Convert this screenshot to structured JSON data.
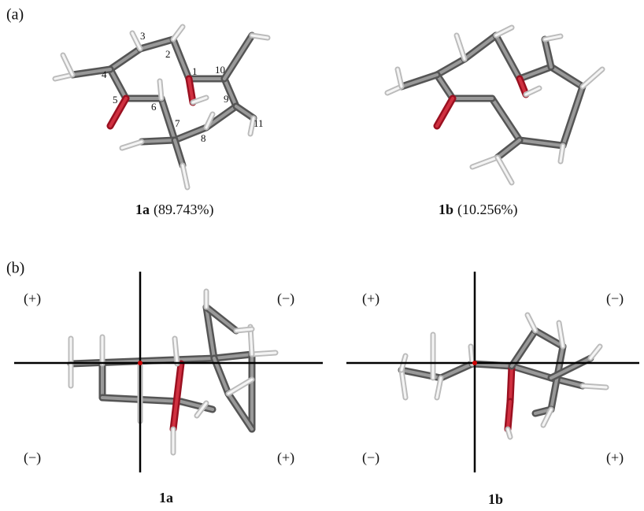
{
  "panel_a": {
    "label": "(a)",
    "atom_numbers": [
      "1",
      "2",
      "3",
      "4",
      "5",
      "6",
      "7",
      "8",
      "9",
      "10",
      "11"
    ],
    "conformers": [
      {
        "name": "1a",
        "population": "(89.743%)"
      },
      {
        "name": "1b",
        "population": "(10.256%)"
      }
    ]
  },
  "panel_b": {
    "label": "(b)",
    "projections": [
      {
        "name": "1a",
        "quadrants": [
          "(+)",
          "(−)",
          "(−)",
          "(+)"
        ]
      },
      {
        "name": "1b",
        "quadrants": [
          "(+)",
          "(−)",
          "(−)",
          "(+)"
        ]
      }
    ]
  }
}
